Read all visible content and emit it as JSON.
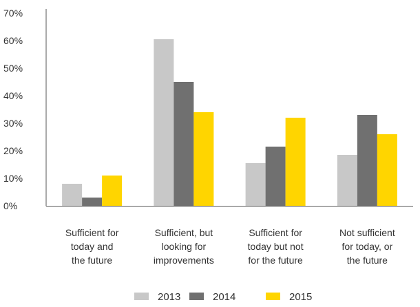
{
  "chart_data": {
    "type": "bar",
    "categories": [
      [
        "Sufficient for",
        "today and",
        "the future"
      ],
      [
        "Sufficient, but",
        "looking for",
        "improvements"
      ],
      [
        "Sufficient for",
        "today but not",
        "for the future"
      ],
      [
        "Not sufficient",
        "for today, or",
        "the future"
      ]
    ],
    "series": [
      {
        "name": "2013",
        "color": "#c8c8c8",
        "values": [
          8,
          60.5,
          15.5,
          18.5
        ]
      },
      {
        "name": "2014",
        "color": "#707070",
        "values": [
          3,
          45,
          21.5,
          33
        ]
      },
      {
        "name": "2015",
        "color": "#ffd500",
        "values": [
          11,
          34,
          32,
          26
        ]
      }
    ],
    "ylim": [
      0,
      70
    ],
    "yticks": [
      "0%",
      "10%",
      "20%",
      "30%",
      "40%",
      "50%",
      "60%",
      "70%"
    ],
    "legend_position": "bottom",
    "grid": false
  }
}
